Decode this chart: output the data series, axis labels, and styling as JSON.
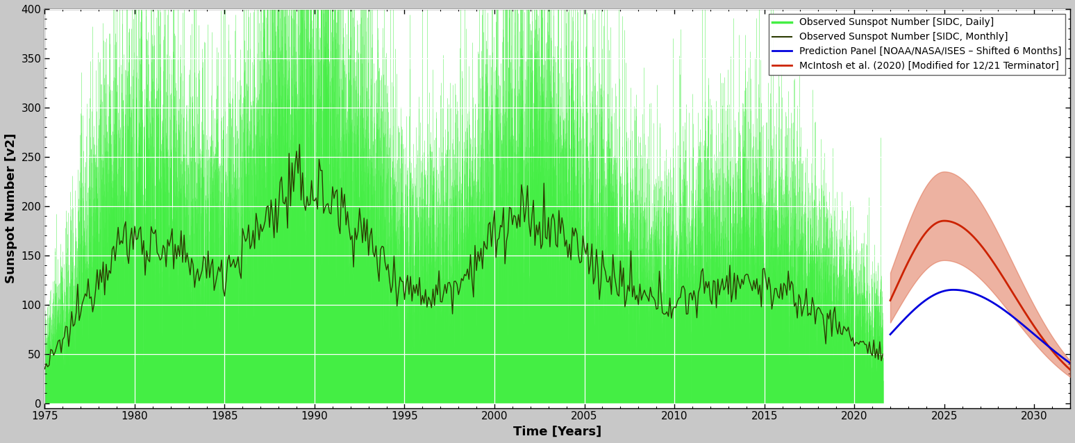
{
  "title": "",
  "xlabel": "Time [Years]",
  "ylabel": "Sunspot Number [v2]",
  "xlim": [
    1975,
    2032
  ],
  "ylim": [
    -5,
    400
  ],
  "yticks": [
    0,
    50,
    100,
    150,
    200,
    250,
    300,
    350,
    400
  ],
  "xticks": [
    1975,
    1980,
    1985,
    1990,
    1995,
    2000,
    2005,
    2010,
    2015,
    2020,
    2025,
    2030
  ],
  "bg_color": "#ffffff",
  "grid_color": "#cccccc",
  "daily_color": "#44ee44",
  "monthly_color": "#2a3a00",
  "panel_color": "#0000dd",
  "mcintosh_color": "#cc2200",
  "mcintosh_fill_color": "#dd6644",
  "legend_labels": [
    "Observed Sunspot Number [SIDC, Daily]",
    "Observed Sunspot Number [SIDC, Monthly]",
    "Prediction Panel [NOAA/NASA/ISES – Shifted 6 Months]",
    "McIntosh et al. (2020) [Modified for 12/21 Terminator]"
  ],
  "font_family": "DejaVu Sans",
  "tick_font_size": 11,
  "label_font_size": 13,
  "legend_font_size": 10
}
